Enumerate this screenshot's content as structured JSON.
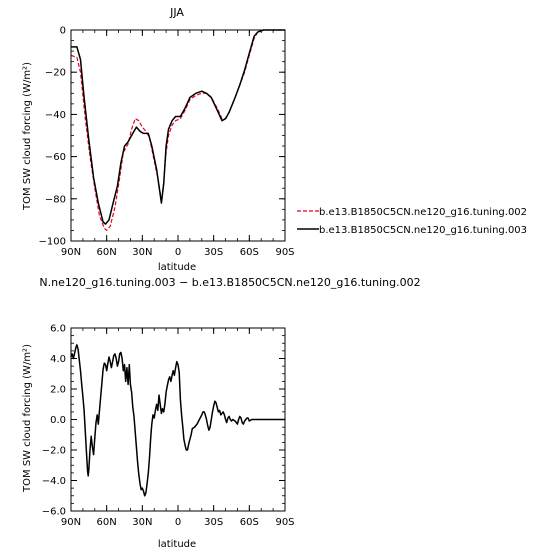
{
  "chart_data": [
    {
      "type": "line",
      "title": "JJA",
      "xlabel": "latitude",
      "ylabel": "TOM SW cloud forcing (W/m²)",
      "xlim": [
        90,
        -90
      ],
      "ylim": [
        -100,
        0
      ],
      "x_ticks": [
        90,
        60,
        30,
        0,
        -30,
        -60,
        -90
      ],
      "x_tick_labels": [
        "90N",
        "60N",
        "30N",
        "0",
        "30S",
        "60S",
        "90S"
      ],
      "y_ticks": [
        0,
        -20,
        -40,
        -60,
        -80,
        -100
      ],
      "y_tick_labels": [
        "0",
        "−20",
        "−40",
        "−60",
        "−80",
        "−100"
      ],
      "legend_position": "right",
      "series": [
        {
          "name": "b.e13.B1850C5CN.ne120_g16.tuning.002",
          "color": "#e8001c",
          "dash": "dashed",
          "points": [
            [
              90,
              -12
            ],
            [
              85,
              -13
            ],
            [
              82,
              -20
            ],
            [
              78,
              -42
            ],
            [
              74,
              -60
            ],
            [
              70,
              -75
            ],
            [
              66,
              -88
            ],
            [
              62,
              -94
            ],
            [
              60,
              -95
            ],
            [
              57,
              -93
            ],
            [
              53,
              -84
            ],
            [
              49,
              -70
            ],
            [
              46,
              -58
            ],
            [
              42,
              -54
            ],
            [
              39,
              -47
            ],
            [
              36,
              -42
            ],
            [
              33,
              -43
            ],
            [
              30,
              -46
            ],
            [
              27,
              -48
            ],
            [
              24,
              -51
            ],
            [
              20,
              -62
            ],
            [
              17,
              -70
            ],
            [
              15,
              -77
            ],
            [
              14,
              -82
            ],
            [
              12,
              -72
            ],
            [
              10,
              -58
            ],
            [
              8,
              -50
            ],
            [
              5,
              -45
            ],
            [
              2,
              -43
            ],
            [
              -2,
              -42
            ],
            [
              -6,
              -38
            ],
            [
              -10,
              -33
            ],
            [
              -15,
              -31
            ],
            [
              -20,
              -30
            ],
            [
              -24,
              -30
            ],
            [
              -28,
              -32
            ],
            [
              -33,
              -37
            ],
            [
              -37,
              -42
            ],
            [
              -40,
              -42
            ],
            [
              -43,
              -39
            ],
            [
              -48,
              -32
            ],
            [
              -52,
              -26
            ],
            [
              -56,
              -20
            ],
            [
              -60,
              -12
            ],
            [
              -64,
              -4
            ],
            [
              -67,
              -1
            ],
            [
              -72,
              0
            ],
            [
              -80,
              0
            ],
            [
              -90,
              0
            ]
          ]
        },
        {
          "name": "b.e13.B1850C5CN.ne120_g16.tuning.003",
          "color": "#000000",
          "dash": "solid",
          "points": [
            [
              90,
              -8
            ],
            [
              85,
              -8
            ],
            [
              82,
              -14
            ],
            [
              79,
              -32
            ],
            [
              75,
              -52
            ],
            [
              71,
              -70
            ],
            [
              67,
              -82
            ],
            [
              63,
              -91
            ],
            [
              61,
              -92
            ],
            [
              58,
              -90
            ],
            [
              55,
              -83
            ],
            [
              51,
              -74
            ],
            [
              48,
              -63
            ],
            [
              45,
              -55
            ],
            [
              42,
              -53
            ],
            [
              38,
              -49
            ],
            [
              35,
              -46
            ],
            [
              32,
              -48
            ],
            [
              29,
              -49
            ],
            [
              25,
              -49
            ],
            [
              22,
              -55
            ],
            [
              18,
              -66
            ],
            [
              16,
              -74
            ],
            [
              14,
              -82
            ],
            [
              12,
              -73
            ],
            [
              10,
              -55
            ],
            [
              8,
              -47
            ],
            [
              5,
              -43
            ],
            [
              2,
              -41
            ],
            [
              -2,
              -41
            ],
            [
              -6,
              -37
            ],
            [
              -10,
              -32
            ],
            [
              -15,
              -30
            ],
            [
              -20,
              -29
            ],
            [
              -24,
              -30
            ],
            [
              -28,
              -32
            ],
            [
              -33,
              -38
            ],
            [
              -37,
              -43
            ],
            [
              -40,
              -42
            ],
            [
              -43,
              -39
            ],
            [
              -48,
              -32
            ],
            [
              -52,
              -26
            ],
            [
              -56,
              -19
            ],
            [
              -60,
              -11
            ],
            [
              -64,
              -3
            ],
            [
              -67,
              -1
            ],
            [
              -72,
              0
            ],
            [
              -80,
              0
            ],
            [
              -90,
              0
            ]
          ]
        }
      ]
    },
    {
      "type": "line",
      "title": "N.ne120_g16.tuning.003 − b.e13.B1850C5CN.ne120_g16.tuning.002",
      "xlabel": "latitude",
      "ylabel": "TOM SW cloud forcing (W/m²)",
      "xlim": [
        90,
        -90
      ],
      "ylim": [
        -6,
        6
      ],
      "x_ticks": [
        90,
        60,
        30,
        0,
        -30,
        -60,
        -90
      ],
      "x_tick_labels": [
        "90N",
        "60N",
        "30N",
        "0",
        "30S",
        "60S",
        "90S"
      ],
      "y_ticks": [
        6,
        4,
        2,
        0,
        -2,
        -4,
        -6
      ],
      "y_tick_labels": [
        "6.0",
        "4.0",
        "2.0",
        "0.0",
        "−2.0",
        "−4.0",
        "−6.0"
      ],
      "series": [
        {
          "color": "#000000",
          "dash": "solid",
          "points": [
            [
              90,
              4.1
            ],
            [
              89,
              4.3
            ],
            [
              88,
              4.0
            ],
            [
              86,
              4.7
            ],
            [
              85,
              4.9
            ],
            [
              84,
              4.6
            ],
            [
              83,
              3.9
            ],
            [
              82,
              3.2
            ],
            [
              81,
              2.3
            ],
            [
              80,
              1.5
            ],
            [
              79,
              0.6
            ],
            [
              78,
              -0.8
            ],
            [
              77,
              -2.2
            ],
            [
              76,
              -3.4
            ],
            [
              75.5,
              -3.7
            ],
            [
              75,
              -3.3
            ],
            [
              74,
              -2.0
            ],
            [
              73,
              -1.1
            ],
            [
              72,
              -1.8
            ],
            [
              71,
              -2.3
            ],
            [
              70,
              -1.2
            ],
            [
              69,
              -0.2
            ],
            [
              68,
              0.3
            ],
            [
              67,
              -0.3
            ],
            [
              66,
              0.6
            ],
            [
              65,
              1.5
            ],
            [
              64,
              2.4
            ],
            [
              63,
              3.3
            ],
            [
              62,
              3.7
            ],
            [
              61,
              3.6
            ],
            [
              60,
              3.2
            ],
            [
              59,
              3.7
            ],
            [
              58,
              4.1
            ],
            [
              57,
              3.8
            ],
            [
              56,
              3.4
            ],
            [
              55,
              3.8
            ],
            [
              54,
              4.2
            ],
            [
              53,
              4.3
            ],
            [
              52,
              4.0
            ],
            [
              51,
              3.5
            ],
            [
              50,
              3.8
            ],
            [
              49,
              4.3
            ],
            [
              48,
              4.4
            ],
            [
              47,
              4.0
            ],
            [
              46,
              3.2
            ],
            [
              45,
              3.6
            ],
            [
              44,
              2.5
            ],
            [
              43,
              3.4
            ],
            [
              42,
              2.3
            ],
            [
              41,
              3.6
            ],
            [
              40,
              2.3
            ],
            [
              39,
              1.8
            ],
            [
              38,
              0.8
            ],
            [
              37,
              0.2
            ],
            [
              36,
              -0.8
            ],
            [
              35,
              -1.8
            ],
            [
              34,
              -2.8
            ],
            [
              33,
              -3.6
            ],
            [
              32,
              -4.2
            ],
            [
              31,
              -4.6
            ],
            [
              30,
              -4.5
            ],
            [
              29,
              -4.7
            ],
            [
              28,
              -5.0
            ],
            [
              27,
              -4.8
            ],
            [
              26,
              -4.2
            ],
            [
              25,
              -3.5
            ],
            [
              24,
              -2.5
            ],
            [
              23,
              -1.2
            ],
            [
              22,
              -0.3
            ],
            [
              21,
              0.3
            ],
            [
              20,
              0.1
            ],
            [
              19,
              0.6
            ],
            [
              18,
              1.0
            ],
            [
              17,
              0.6
            ],
            [
              16,
              1.6
            ],
            [
              15,
              1.0
            ],
            [
              14,
              0.4
            ],
            [
              13,
              0.7
            ],
            [
              12,
              0.5
            ],
            [
              11,
              1.0
            ],
            [
              10,
              1.8
            ],
            [
              9,
              2.2
            ],
            [
              8,
              2.6
            ],
            [
              7,
              2.8
            ],
            [
              6,
              2.5
            ],
            [
              5,
              2.9
            ],
            [
              4,
              3.2
            ],
            [
              3,
              2.9
            ],
            [
              2,
              3.4
            ],
            [
              1,
              3.8
            ],
            [
              0,
              3.6
            ],
            [
              -1,
              3.1
            ],
            [
              -2,
              1.3
            ],
            [
              -3,
              0.3
            ],
            [
              -4,
              -0.5
            ],
            [
              -5,
              -1.3
            ],
            [
              -6,
              -1.7
            ],
            [
              -7,
              -2.0
            ],
            [
              -8,
              -2.0
            ],
            [
              -9,
              -1.6
            ],
            [
              -10,
              -1.3
            ],
            [
              -11,
              -1.0
            ],
            [
              -12,
              -0.6
            ],
            [
              -14,
              -0.5
            ],
            [
              -16,
              -0.3
            ],
            [
              -18,
              0.0
            ],
            [
              -20,
              0.3
            ],
            [
              -21,
              0.5
            ],
            [
              -22,
              0.5
            ],
            [
              -23,
              0.3
            ],
            [
              -24,
              0.0
            ],
            [
              -25,
              -0.4
            ],
            [
              -26,
              -0.7
            ],
            [
              -27,
              -0.5
            ],
            [
              -28,
              0.0
            ],
            [
              -29,
              0.5
            ],
            [
              -30,
              0.9
            ],
            [
              -31,
              1.2
            ],
            [
              -32,
              1.1
            ],
            [
              -33,
              0.8
            ],
            [
              -34,
              0.5
            ],
            [
              -35,
              0.6
            ],
            [
              -36,
              0.3
            ],
            [
              -37,
              0.4
            ],
            [
              -38,
              0.5
            ],
            [
              -39,
              0.3
            ],
            [
              -40,
              0.0
            ],
            [
              -41,
              -0.2
            ],
            [
              -42,
              0.1
            ],
            [
              -43,
              0.2
            ],
            [
              -44,
              0.0
            ],
            [
              -45,
              -0.1
            ],
            [
              -46,
              0.0
            ],
            [
              -48,
              -0.1
            ],
            [
              -50,
              -0.3
            ],
            [
              -51,
              0.0
            ],
            [
              -52,
              0.2
            ],
            [
              -53,
              0.1
            ],
            [
              -54,
              -0.2
            ],
            [
              -55,
              -0.3
            ],
            [
              -56,
              -0.1
            ],
            [
              -58,
              0.1
            ],
            [
              -59,
              0.1
            ],
            [
              -60,
              -0.1
            ],
            [
              -62,
              0.0
            ],
            [
              -64,
              0.0
            ],
            [
              -70,
              0.0
            ],
            [
              -80,
              0.0
            ],
            [
              -90,
              0.0
            ]
          ]
        }
      ]
    }
  ]
}
